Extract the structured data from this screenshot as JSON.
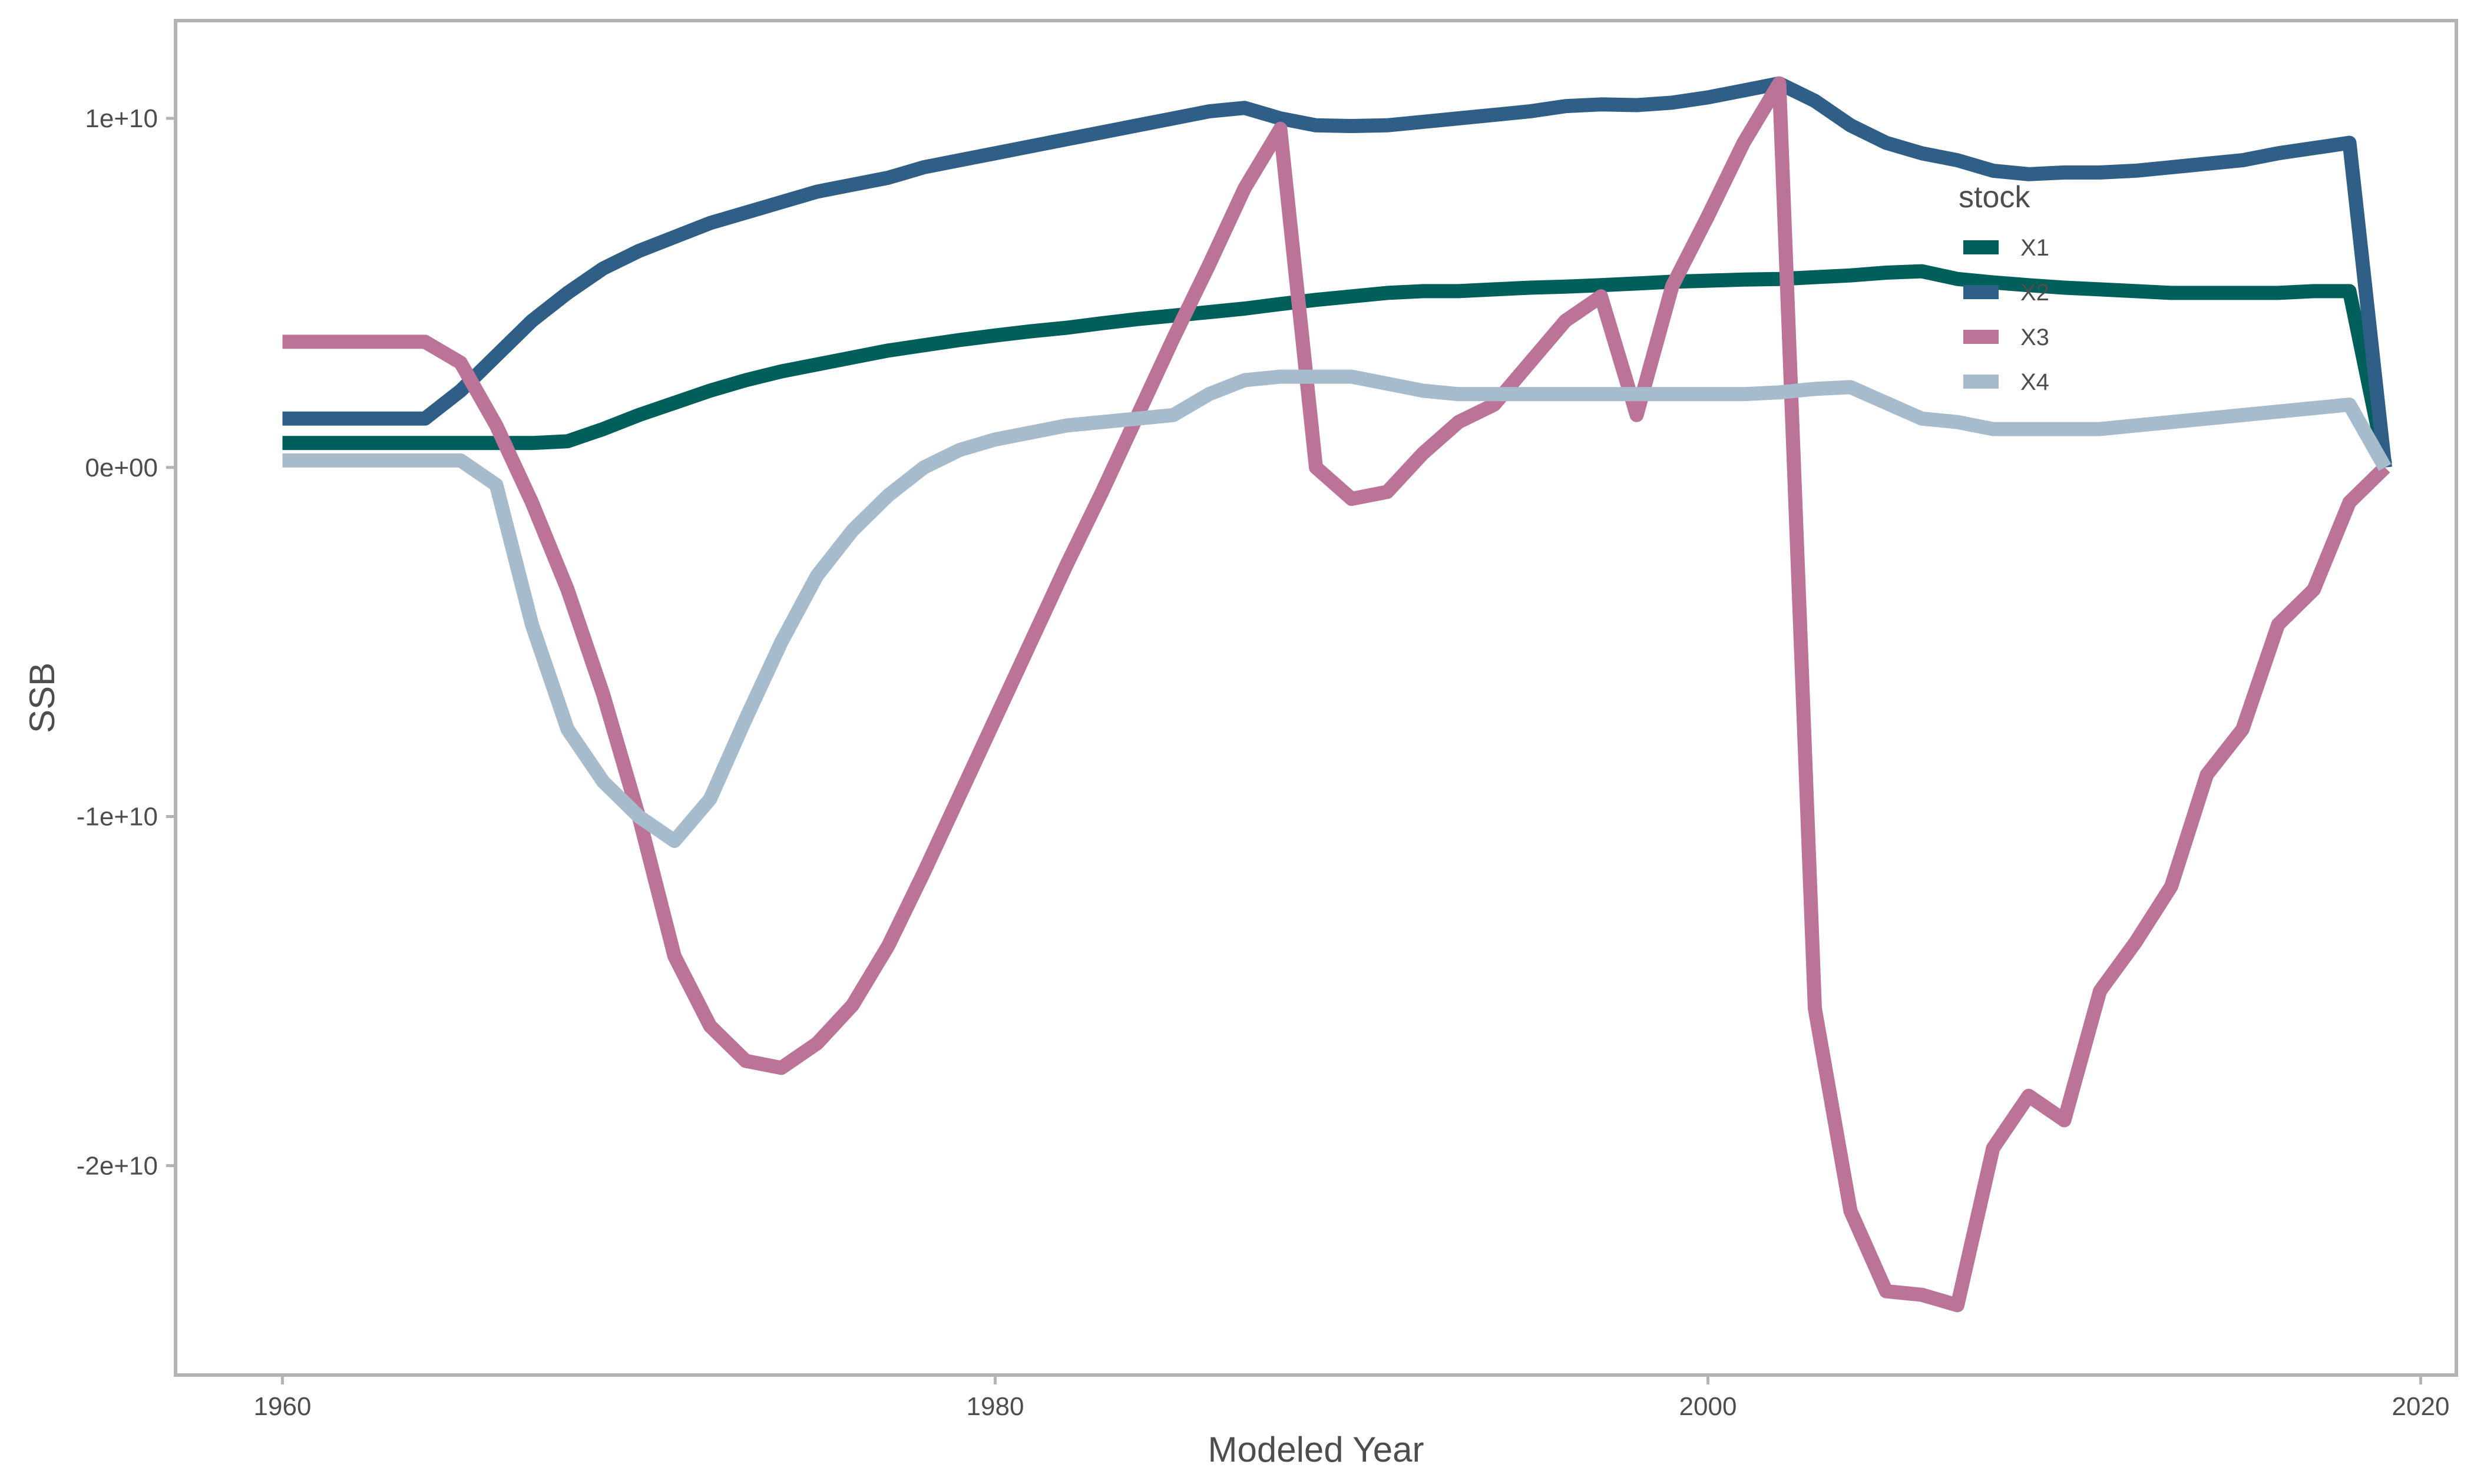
{
  "chart_data": {
    "type": "line",
    "xlabel": "Modeled Year",
    "ylabel": "SSB",
    "xlim": [
      1957,
      2021
    ],
    "ylim": [
      -26000000000.0,
      12800000000.0
    ],
    "x_ticks": [
      1960,
      1980,
      2000,
      2020
    ],
    "y_ticks": [
      -20000000000.0,
      -10000000000.0,
      0,
      10000000000.0
    ],
    "x_tick_labels": [
      "1960",
      "1980",
      "2000",
      "2020"
    ],
    "y_tick_labels": [
      "-2e+10",
      "-1e+10",
      "0e+00",
      "1e+10"
    ],
    "grid": false,
    "legend": {
      "title": "stock",
      "position": "top-right-inside"
    },
    "x": [
      1960,
      1961,
      1962,
      1963,
      1964,
      1965,
      1966,
      1967,
      1968,
      1969,
      1970,
      1971,
      1972,
      1973,
      1974,
      1975,
      1976,
      1977,
      1978,
      1979,
      1980,
      1981,
      1982,
      1983,
      1984,
      1985,
      1986,
      1987,
      1988,
      1989,
      1990,
      1991,
      1992,
      1993,
      1994,
      1995,
      1996,
      1997,
      1998,
      1999,
      2000,
      2001,
      2002,
      2003,
      2004,
      2005,
      2006,
      2007,
      2008,
      2009,
      2010,
      2011,
      2012,
      2013,
      2014,
      2015,
      2016,
      2017,
      2018,
      2019
    ],
    "series": [
      {
        "name": "X1",
        "color": "#005f5a",
        "values": [
          700000000.0,
          700000000.0,
          700000000.0,
          700000000.0,
          700000000.0,
          700000000.0,
          700000000.0,
          700000000.0,
          750000000.0,
          1100000000.0,
          1500000000.0,
          1850000000.0,
          2200000000.0,
          2500000000.0,
          2750000000.0,
          2950000000.0,
          3150000000.0,
          3350000000.0,
          3500000000.0,
          3650000000.0,
          3780000000.0,
          3900000000.0,
          4000000000.0,
          4130000000.0,
          4250000000.0,
          4350000000.0,
          4450000000.0,
          4550000000.0,
          4680000000.0,
          4800000000.0,
          4900000000.0,
          5000000000.0,
          5050000000.0,
          5050000000.0,
          5100000000.0,
          5150000000.0,
          5180000000.0,
          5220000000.0,
          5270000000.0,
          5320000000.0,
          5350000000.0,
          5380000000.0,
          5400000000.0,
          5450000000.0,
          5500000000.0,
          5580000000.0,
          5620000000.0,
          5400000000.0,
          5300000000.0,
          5220000000.0,
          5150000000.0,
          5100000000.0,
          5050000000.0,
          5000000000.0,
          5000000000.0,
          5000000000.0,
          5000000000.0,
          5050000000.0,
          5050000000.0,
          100000000.0
        ]
      },
      {
        "name": "X2",
        "color": "#2f5f86",
        "values": [
          1400000000.0,
          1400000000.0,
          1400000000.0,
          1400000000.0,
          1400000000.0,
          2200000000.0,
          3200000000.0,
          4200000000.0,
          5000000000.0,
          5700000000.0,
          6200000000.0,
          6600000000.0,
          7000000000.0,
          7300000000.0,
          7600000000.0,
          7900000000.0,
          8100000000.0,
          8300000000.0,
          8600000000.0,
          8800000000.0,
          9000000000.0,
          9200000000.0,
          9400000000.0,
          9600000000.0,
          9800000000.0,
          10000000000.0,
          10200000000.0,
          10300000000.0,
          10000000000.0,
          9800000000.0,
          9780000000.0,
          9800000000.0,
          9900000000.0,
          10000000000.0,
          10100000000.0,
          10200000000.0,
          10350000000.0,
          10400000000.0,
          10380000000.0,
          10450000000.0,
          10600000000.0,
          10800000000.0,
          11000000000.0,
          10500000000.0,
          9800000000.0,
          9300000000.0,
          9000000000.0,
          8800000000.0,
          8500000000.0,
          8400000000.0,
          8450000000.0,
          8450000000.0,
          8500000000.0,
          8600000000.0,
          8700000000.0,
          8800000000.0,
          9000000000.0,
          9150000000.0,
          9300000000.0,
          0.0
        ]
      },
      {
        "name": "X3",
        "color": "#bb7498",
        "values": [
          3600000000.0,
          3600000000.0,
          3600000000.0,
          3600000000.0,
          3600000000.0,
          3000000000.0,
          1200000000.0,
          -1000000000.0,
          -3500000000.0,
          -6500000000.0,
          -10000000000.0,
          -14000000000.0,
          -16000000000.0,
          -17000000000.0,
          -17200000000.0,
          -16500000000.0,
          -15400000000.0,
          -13700000000.0,
          -11600000000.0,
          -9400000000.0,
          -7200000000.0,
          -5000000000.0,
          -2800000000.0,
          -700000000.0,
          1500000000.0,
          3700000000.0,
          5800000000.0,
          8000000000.0,
          9700000000.0,
          0.0,
          -900000000.0,
          -700000000.0,
          400000000.0,
          1300000000.0,
          1800000000.0,
          3000000000.0,
          4200000000.0,
          4900000000.0,
          1500000000.0,
          5200000000.0,
          7200000000.0,
          9300000000.0,
          11000000000.0,
          -15500000000.0,
          -21300000000.0,
          -23600000000.0,
          -23700000000.0,
          -24000000000.0,
          -19500000000.0,
          -18000000000.0,
          -18700000000.0,
          -15000000000.0,
          -13600000000.0,
          -12000000000.0,
          -8800000000.0,
          -7500000000.0,
          -4500000000.0,
          -3500000000.0,
          -1000000000.0,
          0.0
        ]
      },
      {
        "name": "X4",
        "color": "#a6bbcc",
        "values": [
          200000000.0,
          200000000.0,
          200000000.0,
          200000000.0,
          200000000.0,
          200000000.0,
          -500000000.0,
          -4500000000.0,
          -7500000000.0,
          -9000000000.0,
          -10000000000.0,
          -10700000000.0,
          -9500000000.0,
          -7200000000.0,
          -5000000000.0,
          -3100000000.0,
          -1800000000.0,
          -800000000.0,
          0.0,
          500000000.0,
          800000000.0,
          1000000000.0,
          1200000000.0,
          1300000000.0,
          1400000000.0,
          1500000000.0,
          2100000000.0,
          2500000000.0,
          2600000000.0,
          2600000000.0,
          2600000000.0,
          2400000000.0,
          2200000000.0,
          2100000000.0,
          2100000000.0,
          2100000000.0,
          2100000000.0,
          2100000000.0,
          2100000000.0,
          2100000000.0,
          2100000000.0,
          2100000000.0,
          2150000000.0,
          2250000000.0,
          2300000000.0,
          1850000000.0,
          1400000000.0,
          1300000000.0,
          1100000000.0,
          1100000000.0,
          1100000000.0,
          1100000000.0,
          1200000000.0,
          1300000000.0,
          1400000000.0,
          1500000000.0,
          1600000000.0,
          1700000000.0,
          1800000000.0,
          0.0
        ]
      }
    ]
  }
}
